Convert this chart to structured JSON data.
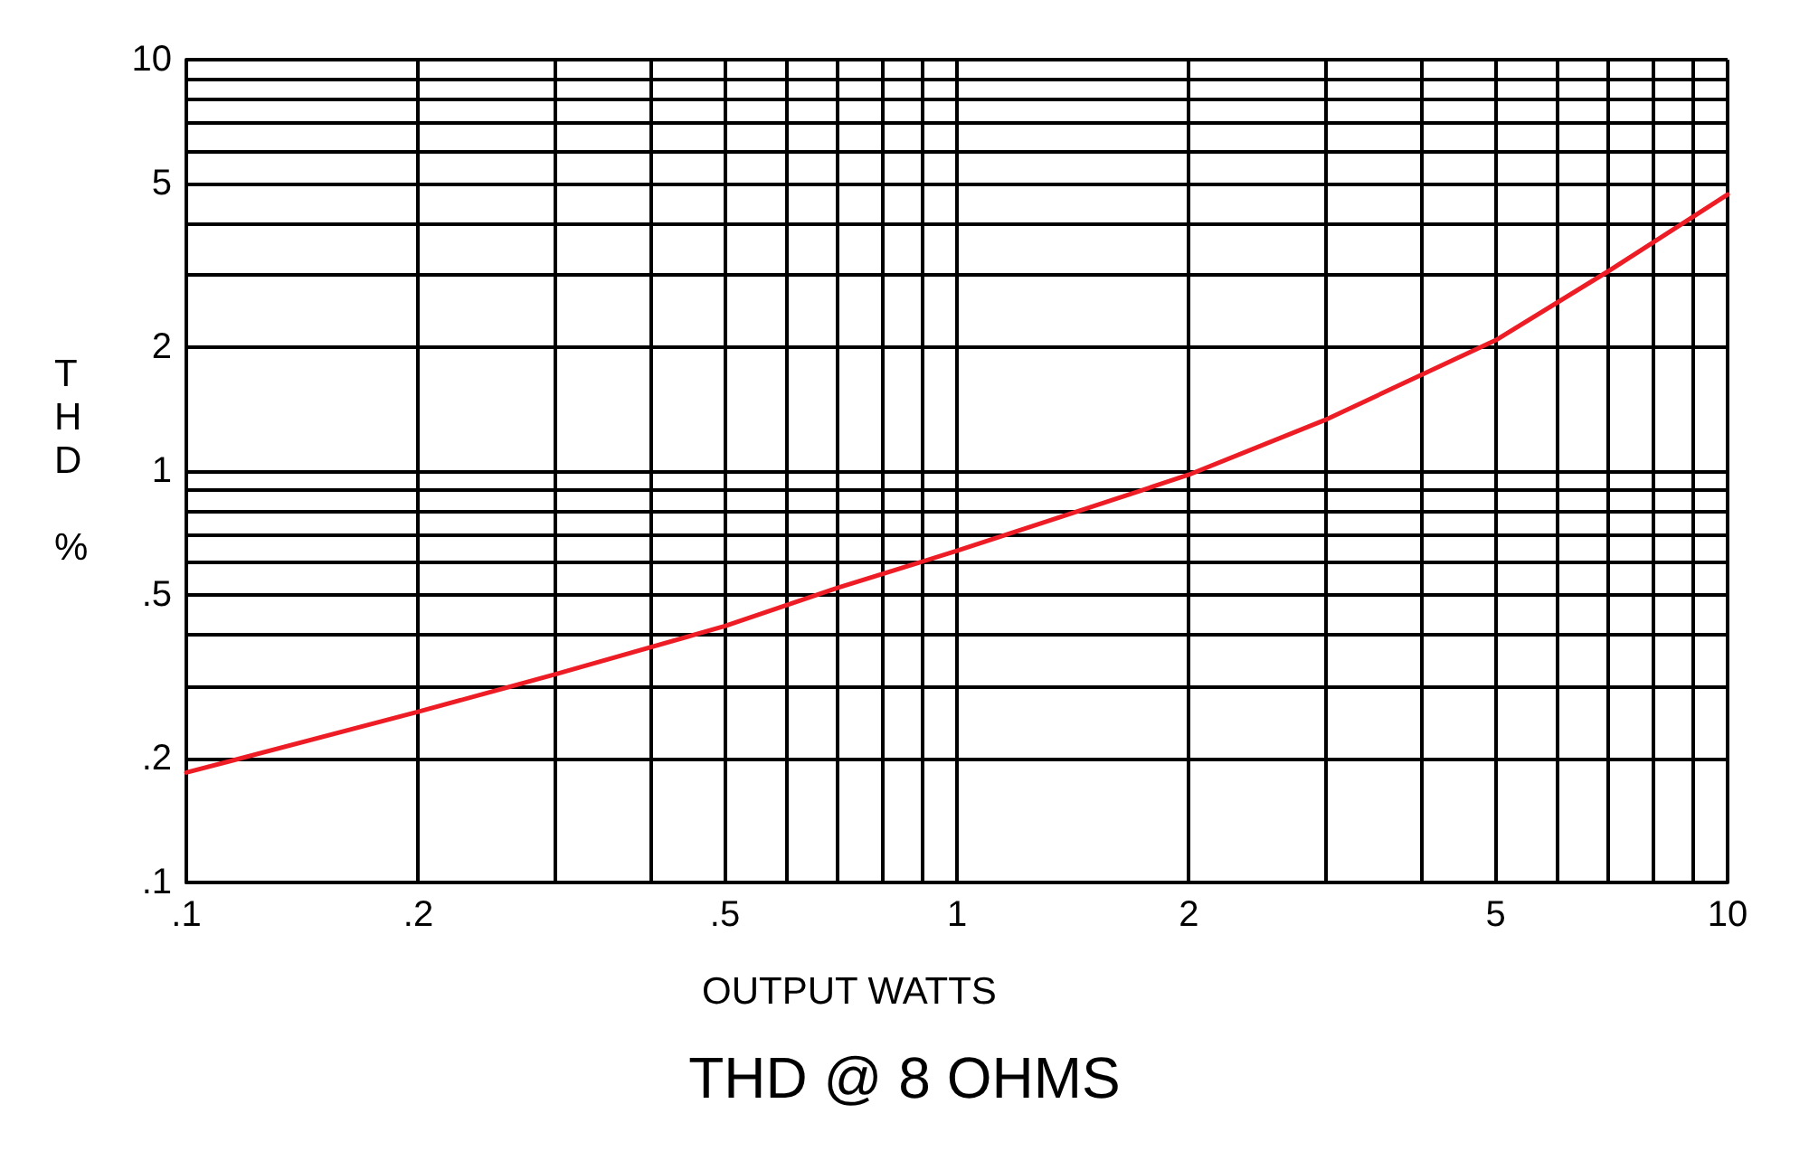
{
  "chart_data": {
    "type": "line",
    "title": "THD @ 8 OHMS",
    "xlabel": "OUTPUT WATTS",
    "ylabel": "THD %",
    "log": "xy",
    "grid": true,
    "marker": "none",
    "line_style": "solid",
    "x": [
      0.1,
      0.2,
      0.3,
      0.5,
      0.7,
      1,
      1.5,
      2,
      3,
      5,
      7,
      10
    ],
    "series": [
      {
        "color": "#ee1c25",
        "values": [
          0.185,
          0.26,
          0.32,
          0.42,
          0.52,
          0.64,
          0.82,
          0.98,
          1.33,
          2.08,
          3.06,
          4.7
        ]
      }
    ],
    "xlim": [
      0.1,
      10
    ],
    "ylim": [
      0.1,
      10
    ],
    "xticks": [
      {
        "value": 0.1,
        "label": ".1"
      },
      {
        "value": 0.2,
        "label": ".2"
      },
      {
        "value": 0.3,
        "label": null
      },
      {
        "value": 0.4,
        "label": null
      },
      {
        "value": 0.5,
        "label": ".5"
      },
      {
        "value": 0.6,
        "label": null
      },
      {
        "value": 0.7,
        "label": null
      },
      {
        "value": 0.8,
        "label": null
      },
      {
        "value": 0.9,
        "label": null
      },
      1,
      2,
      {
        "value": 3,
        "label": null
      },
      {
        "value": 4,
        "label": null
      },
      5,
      {
        "value": 6,
        "label": null
      },
      {
        "value": 7,
        "label": null
      },
      {
        "value": 8,
        "label": null
      },
      {
        "value": 9,
        "label": null
      },
      10
    ],
    "yticks": [
      {
        "value": 0.1,
        "label": ".1"
      },
      {
        "value": 0.2,
        "label": ".2"
      },
      {
        "value": 0.3,
        "label": null
      },
      {
        "value": 0.4,
        "label": null
      },
      {
        "value": 0.5,
        "label": ".5"
      },
      {
        "value": 0.6,
        "label": null
      },
      {
        "value": 0.7,
        "label": null
      },
      {
        "value": 0.8,
        "label": null
      },
      {
        "value": 0.9,
        "label": null
      },
      1,
      2,
      {
        "value": 3,
        "label": null
      },
      {
        "value": 4,
        "label": null
      },
      5,
      {
        "value": 6,
        "label": null
      },
      {
        "value": 7,
        "label": null
      },
      {
        "value": 8,
        "label": null
      },
      {
        "value": 9,
        "label": null
      },
      10
    ]
  }
}
